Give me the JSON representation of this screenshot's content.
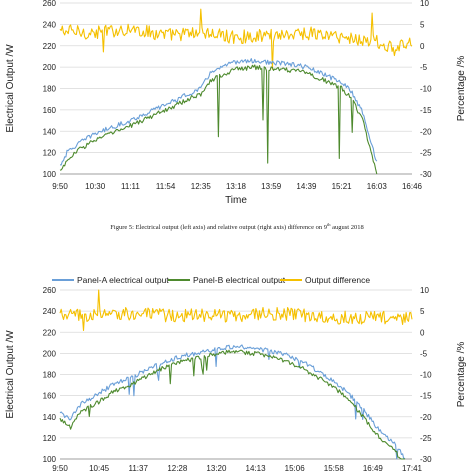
{
  "figure_caption": {
    "prefix": "Figure 5: Electrical output (left axis) and relative output (right axis) difference on 9",
    "superscript": "th",
    "suffix": " august 2018"
  },
  "colors": {
    "panel_a": "#6a9fd8",
    "panel_b": "#4e8a2e",
    "difference": "#f5c000",
    "grid": "#d9d9d9",
    "axis_text": "#222222"
  },
  "chart_data": [
    {
      "type": "line",
      "title": "",
      "xlabel": "Time",
      "ylabel": "Electrical Output /W",
      "y2label": "Percentage /%",
      "ylim": [
        100,
        260
      ],
      "y2lim": [
        -30,
        10
      ],
      "yticks": [
        "260",
        "240",
        "220",
        "200",
        "180",
        "160",
        "140",
        "120",
        "100"
      ],
      "y2ticks": [
        "10",
        "5",
        "0",
        "-5",
        "-10",
        "-15",
        "-20",
        "-25",
        "-30"
      ],
      "xticks": [
        "9:50",
        "10:30",
        "11:11",
        "11:54",
        "12:35",
        "13:18",
        "13:59",
        "14:39",
        "15:21",
        "16:03",
        "16:46"
      ],
      "grid": true,
      "legend": false,
      "series": [
        {
          "key": "panel_a",
          "axis": "left",
          "x": [
            0,
            0.02,
            0.05,
            0.1,
            0.2,
            0.3,
            0.4,
            0.43,
            0.5,
            0.55,
            0.6,
            0.65,
            0.7,
            0.75,
            0.8,
            0.83,
            0.86,
            0.9
          ],
          "y": [
            108,
            120,
            128,
            138,
            150,
            165,
            180,
            196,
            205,
            206,
            204,
            203,
            200,
            193,
            186,
            176,
            158,
            110
          ]
        },
        {
          "key": "panel_b",
          "axis": "left",
          "x": [
            0,
            0.02,
            0.05,
            0.1,
            0.2,
            0.3,
            0.4,
            0.43,
            0.5,
            0.55,
            0.6,
            0.65,
            0.7,
            0.75,
            0.8,
            0.83,
            0.86,
            0.9
          ],
          "y": [
            103,
            112,
            122,
            132,
            145,
            160,
            175,
            188,
            198,
            200,
            198,
            197,
            195,
            188,
            180,
            170,
            150,
            100
          ]
        },
        {
          "key": "difference",
          "axis": "right",
          "x": [
            0,
            0.1,
            0.2,
            0.3,
            0.4,
            0.5,
            0.6,
            0.7,
            0.8,
            0.9,
            0.95,
            1.0
          ],
          "y": [
            3.5,
            3,
            4,
            2.5,
            3,
            2,
            2.5,
            3,
            2,
            1,
            -1,
            1
          ]
        }
      ]
    },
    {
      "type": "line",
      "title": "",
      "xlabel": "",
      "ylabel": "Electrical Output /W",
      "y2label": "Percentage /%",
      "ylim": [
        100,
        260
      ],
      "y2lim": [
        -30,
        10
      ],
      "yticks": [
        "260",
        "240",
        "220",
        "200",
        "180",
        "160",
        "140",
        "120",
        "100"
      ],
      "y2ticks": [
        "10",
        "5",
        "0",
        "-5",
        "-10",
        "-15",
        "-20",
        "-25",
        "-30"
      ],
      "xticks": [
        "9:50",
        "10:45",
        "11:37",
        "12:28",
        "13:20",
        "14:13",
        "15:06",
        "15:58",
        "16:49",
        "17:41"
      ],
      "grid": true,
      "legend": true,
      "legend_position": "top",
      "series": [
        {
          "key": "panel_a",
          "name": "Panel-A electrical output",
          "axis": "left",
          "x": [
            0,
            0.03,
            0.06,
            0.1,
            0.15,
            0.2,
            0.25,
            0.3,
            0.35,
            0.4,
            0.45,
            0.5,
            0.55,
            0.6,
            0.65,
            0.7,
            0.75,
            0.8,
            0.85,
            0.9,
            0.95,
            0.98
          ],
          "y": [
            143,
            138,
            152,
            160,
            170,
            177,
            185,
            192,
            198,
            201,
            205,
            207,
            205,
            202,
            198,
            190,
            180,
            168,
            152,
            130,
            115,
            100
          ]
        },
        {
          "key": "panel_b",
          "name": "Panel-B electrical output",
          "axis": "left",
          "x": [
            0,
            0.03,
            0.06,
            0.1,
            0.15,
            0.2,
            0.25,
            0.3,
            0.35,
            0.4,
            0.45,
            0.5,
            0.55,
            0.6,
            0.65,
            0.7,
            0.75,
            0.8,
            0.85,
            0.9,
            0.95,
            0.98
          ],
          "y": [
            138,
            130,
            145,
            152,
            163,
            170,
            179,
            187,
            193,
            196,
            200,
            202,
            200,
            197,
            192,
            184,
            174,
            162,
            145,
            123,
            108,
            95
          ]
        },
        {
          "key": "difference",
          "name": "Output difference",
          "axis": "right",
          "x": [
            0,
            0.1,
            0.2,
            0.3,
            0.4,
            0.5,
            0.6,
            0.7,
            0.8,
            0.9,
            1.0
          ],
          "y": [
            4,
            4,
            4.5,
            4,
            4,
            4,
            4.5,
            4,
            3.5,
            3.5,
            3
          ]
        }
      ]
    }
  ]
}
